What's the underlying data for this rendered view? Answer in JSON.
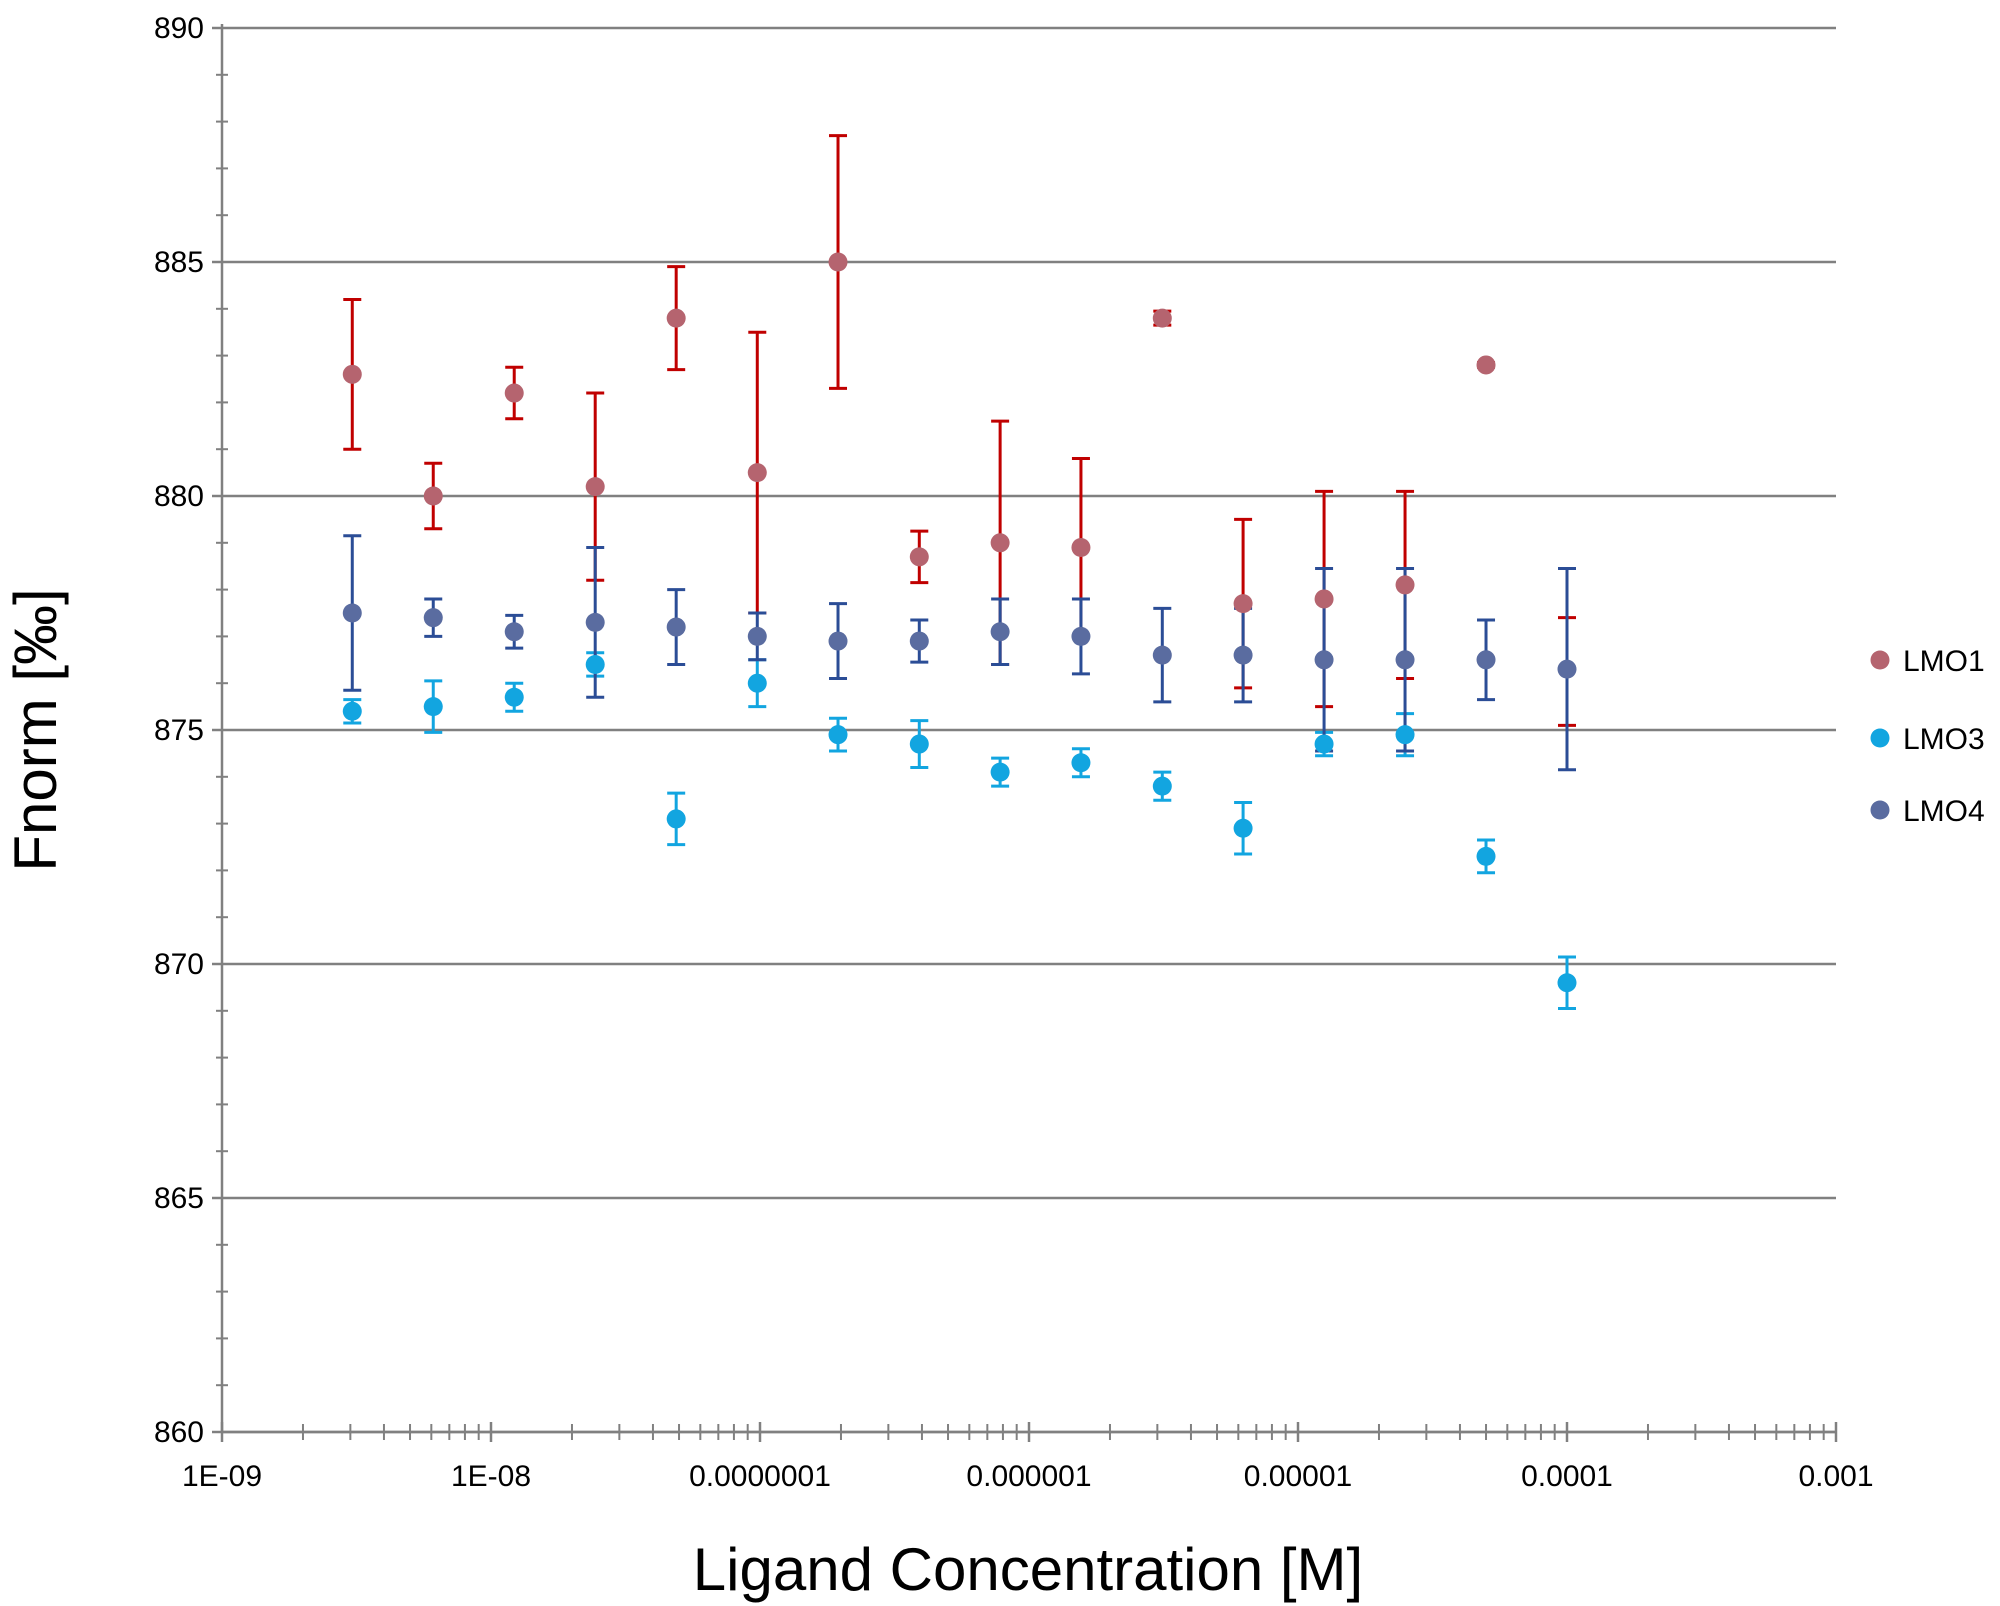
{
  "chart_data": {
    "type": "scatter",
    "title": "",
    "xlabel": "Ligand Concentration [M]",
    "ylabel": "Fnorm [‰]",
    "xscale": "log",
    "xlim": [
      1e-09,
      0.001
    ],
    "ylim": [
      860,
      890
    ],
    "y_ticks": [
      860,
      865,
      870,
      875,
      880,
      885,
      890
    ],
    "x_ticks": [
      {
        "value": 1e-09,
        "label": "1E-09"
      },
      {
        "value": 1e-08,
        "label": "1E-08"
      },
      {
        "value": 1e-07,
        "label": "0.0000001"
      },
      {
        "value": 1e-06,
        "label": "0.000001"
      },
      {
        "value": 1e-05,
        "label": "0.00001"
      },
      {
        "value": 0.0001,
        "label": "0.0001"
      },
      {
        "value": 0.001,
        "label": "0.001"
      }
    ],
    "grid": "horizontal",
    "legend_position": "right",
    "x": [
      3.05e-09,
      6.1e-09,
      1.22e-08,
      2.44e-08,
      4.88e-08,
      9.77e-08,
      1.95e-07,
      3.91e-07,
      7.81e-07,
      1.56e-06,
      3.13e-06,
      6.25e-06,
      1.25e-05,
      2.5e-05,
      5e-05,
      0.0001
    ],
    "series": [
      {
        "name": "LMO1",
        "marker_color": "#B5646F",
        "error_color": "#C00000",
        "values": [
          882.6,
          880.0,
          882.2,
          880.2,
          883.8,
          880.5,
          885.0,
          878.7,
          879.0,
          878.9,
          883.8,
          877.7,
          877.8,
          878.1,
          882.8,
          null
        ],
        "errors": [
          1.6,
          0.7,
          0.55,
          2.0,
          1.1,
          3.0,
          2.7,
          0.55,
          2.6,
          1.9,
          0.15,
          1.8,
          2.3,
          2.0,
          0.05,
          null
        ],
        "orphan_error": {
          "x": 0.0001,
          "low": 875.1,
          "high": 877.4
        }
      },
      {
        "name": "LMO3",
        "marker_color": "#12A5E0",
        "error_color": "#12A5E0",
        "values": [
          875.4,
          875.5,
          875.7,
          876.4,
          873.1,
          876.0,
          874.9,
          874.7,
          874.1,
          874.3,
          873.8,
          872.9,
          874.7,
          874.9,
          872.3,
          869.6
        ],
        "errors": [
          0.25,
          0.55,
          0.3,
          0.25,
          0.55,
          0.5,
          0.35,
          0.5,
          0.3,
          0.3,
          0.3,
          0.55,
          0.25,
          0.45,
          0.35,
          0.55
        ]
      },
      {
        "name": "LMO4",
        "marker_color": "#5A6CA0",
        "error_color": "#2B4D96",
        "values": [
          877.5,
          877.4,
          877.1,
          877.3,
          877.2,
          877.0,
          876.9,
          876.9,
          877.1,
          877.0,
          876.6,
          876.6,
          876.5,
          876.5,
          876.5,
          876.3
        ],
        "errors": [
          1.65,
          0.4,
          0.35,
          1.6,
          0.8,
          0.5,
          0.8,
          0.45,
          0.7,
          0.8,
          1.0,
          1.0,
          1.95,
          1.95,
          0.85,
          2.15
        ]
      }
    ]
  }
}
